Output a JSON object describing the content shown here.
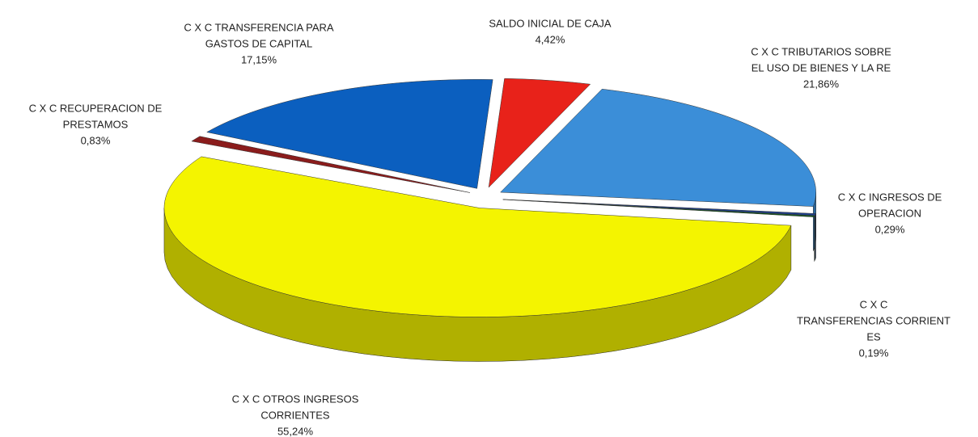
{
  "chart_data": {
    "type": "pie3d",
    "categories": [
      [
        "SALDO INICIAL DE CAJA"
      ],
      [
        "C X C TRIBUTARIOS SOBRE",
        "EL USO DE BIENES Y LA RE"
      ],
      [
        "C X C INGRESOS DE",
        "OPERACION"
      ],
      [
        "C X C",
        "TRANSFERENCIAS CORRIENT",
        "ES"
      ],
      [
        "C X C OTROS INGRESOS",
        "CORRIENTES"
      ],
      [
        "C X C RECUPERACION DE",
        "PRESTAMOS"
      ],
      [
        "C X C TRANSFERENCIA PARA",
        "GASTOS DE CAPITAL"
      ]
    ],
    "values": [
      4.42,
      21.86,
      0.29,
      0.19,
      55.24,
      0.83,
      17.15
    ],
    "value_labels": [
      "4,42%",
      "21,86%",
      "0,29%",
      "0,19%",
      "55,24%",
      "0,83%",
      "17,15%"
    ],
    "colors": [
      "#e8221a",
      "#3b8ed8",
      "#1e3f8c",
      "#0f5a1c",
      "#f4f400",
      "#8a1c1c",
      "#0b5fbf"
    ]
  }
}
